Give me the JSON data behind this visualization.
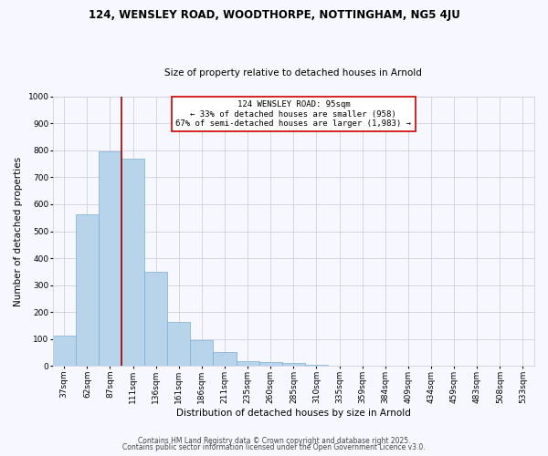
{
  "title_line1": "124, WENSLEY ROAD, WOODTHORPE, NOTTINGHAM, NG5 4JU",
  "title_line2": "Size of property relative to detached houses in Arnold",
  "xlabel": "Distribution of detached houses by size in Arnold",
  "ylabel": "Number of detached properties",
  "categories": [
    "37sqm",
    "62sqm",
    "87sqm",
    "111sqm",
    "136sqm",
    "161sqm",
    "186sqm",
    "211sqm",
    "235sqm",
    "260sqm",
    "285sqm",
    "310sqm",
    "335sqm",
    "359sqm",
    "384sqm",
    "409sqm",
    "434sqm",
    "459sqm",
    "483sqm",
    "508sqm",
    "533sqm"
  ],
  "values": [
    113,
    562,
    797,
    769,
    350,
    165,
    97,
    53,
    18,
    15,
    10,
    5,
    0,
    0,
    0,
    0,
    0,
    0,
    0,
    0,
    0
  ],
  "bar_color": "#b8d4ea",
  "bar_edge_color": "#7aaed4",
  "vline_color": "#990000",
  "vline_x_index": 2.5,
  "annotation_line0": "124 WENSLEY ROAD: 95sqm",
  "annotation_line1": "← 33% of detached houses are smaller (958)",
  "annotation_line2": "67% of semi-detached houses are larger (1,983) →",
  "annotation_box_color": "#cc0000",
  "ylim": [
    0,
    1000
  ],
  "yticks": [
    0,
    100,
    200,
    300,
    400,
    500,
    600,
    700,
    800,
    900,
    1000
  ],
  "footer_line1": "Contains HM Land Registry data © Crown copyright and database right 2025.",
  "footer_line2": "Contains public sector information licensed under the Open Government Licence v3.0.",
  "bg_color": "#f7f7ff",
  "grid_color": "#d0d0e0",
  "title1_fontsize": 8.5,
  "title2_fontsize": 7.5,
  "xlabel_fontsize": 7.5,
  "ylabel_fontsize": 7.5,
  "tick_fontsize": 6.5,
  "annotation_fontsize": 6.5,
  "footer_fontsize": 5.5
}
